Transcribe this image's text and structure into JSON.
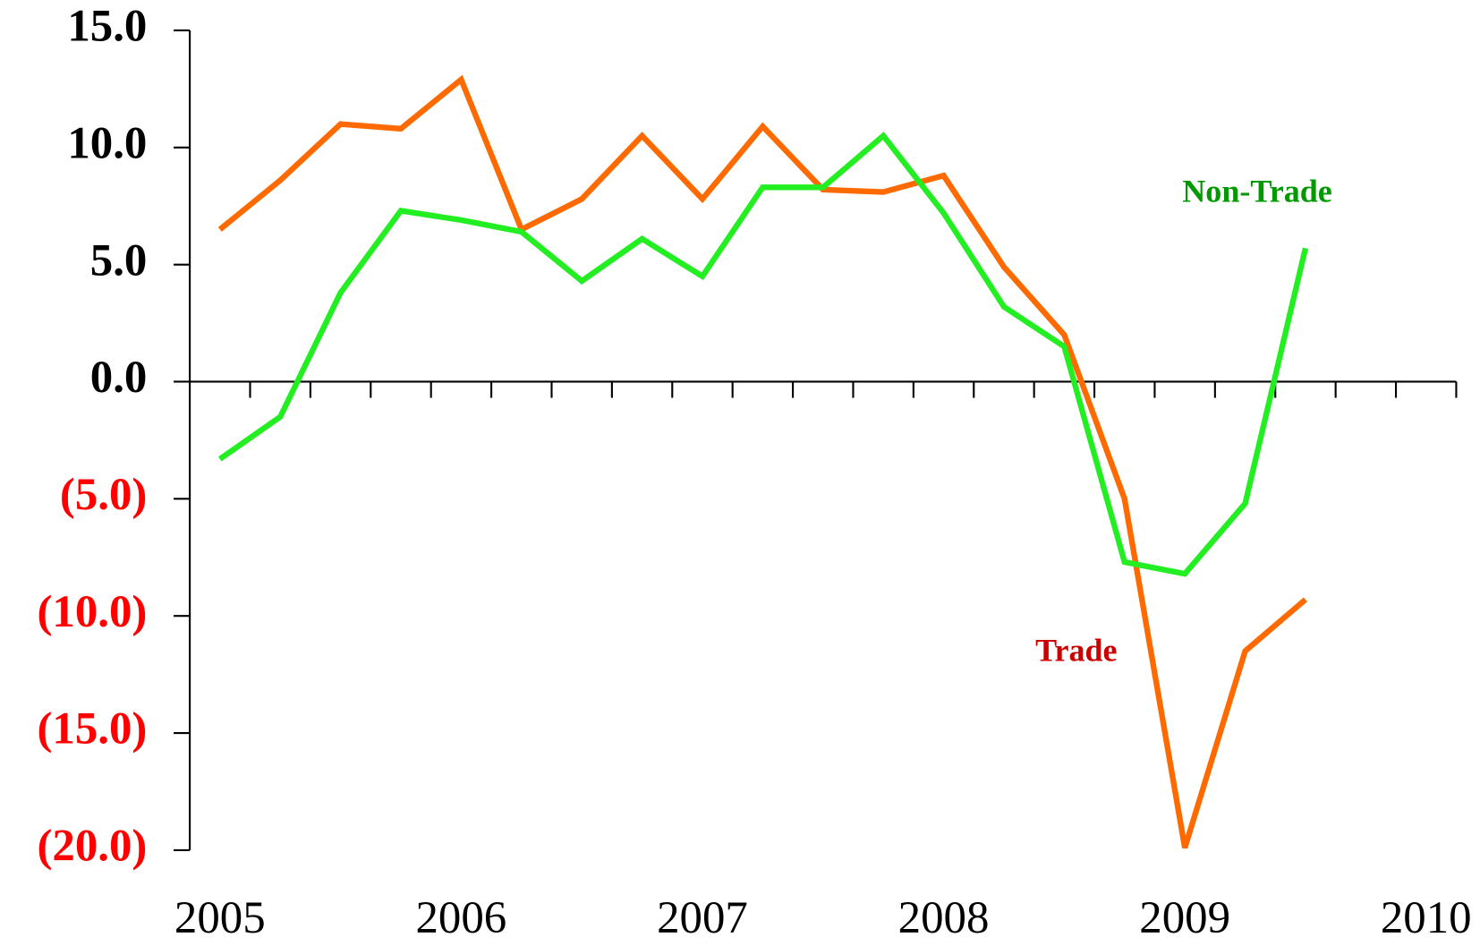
{
  "chart_data": {
    "type": "line",
    "x": [
      2005,
      2005.25,
      2005.5,
      2005.75,
      2006,
      2006.25,
      2006.5,
      2006.75,
      2007,
      2007.25,
      2007.5,
      2007.75,
      2008,
      2008.25,
      2008.5,
      2008.75,
      2009,
      2009.25,
      2009.5
    ],
    "series": [
      {
        "name": "Trade",
        "color": "#ff6a00",
        "values": [
          6.5,
          8.6,
          11.0,
          10.8,
          12.9,
          6.5,
          7.8,
          10.5,
          7.8,
          10.9,
          8.2,
          8.1,
          8.8,
          4.9,
          2.0,
          -5.0,
          -19.9,
          -11.5,
          -9.3
        ]
      },
      {
        "name": "Non-Trade",
        "color": "#22ee22",
        "values": [
          -3.3,
          -1.5,
          3.8,
          7.3,
          6.9,
          6.4,
          4.3,
          6.1,
          4.5,
          8.3,
          8.3,
          10.5,
          7.2,
          3.2,
          1.5,
          -7.7,
          -8.2,
          -5.2,
          5.7
        ]
      }
    ],
    "annotations": [
      {
        "text": "Non-Trade",
        "color": "#009900",
        "x": 2009.3,
        "y": 8.0
      },
      {
        "text": "Trade",
        "color": "#cc0000",
        "x": 2008.55,
        "y": -11.6
      }
    ],
    "xlim": [
      2004.875,
      2010.125
    ],
    "xticks": [
      2005,
      2006,
      2007,
      2008,
      2009,
      2010
    ],
    "xticks_minor": [
      2005.125,
      2005.375,
      2005.625,
      2005.875,
      2006.125,
      2006.375,
      2006.625,
      2006.875,
      2007.125,
      2007.375,
      2007.625,
      2007.875,
      2008.125,
      2008.375,
      2008.625,
      2008.875,
      2009.125,
      2009.375,
      2009.625,
      2009.875,
      2010.125
    ],
    "ylim": [
      -20,
      15
    ],
    "yticks": [
      {
        "value": 15,
        "label": "15.0"
      },
      {
        "value": 10,
        "label": "10.0"
      },
      {
        "value": 5,
        "label": "5.0"
      },
      {
        "value": 0,
        "label": "0.0"
      },
      {
        "value": -5,
        "label": "(5.0)"
      },
      {
        "value": -10,
        "label": "(10.0)"
      },
      {
        "value": -15,
        "label": "(15.0)"
      },
      {
        "value": -20,
        "label": "(20.0)"
      }
    ],
    "tick_label_color": "#000000",
    "negative_tick_label_color": "#ff0000",
    "legend": false,
    "grid": false
  }
}
